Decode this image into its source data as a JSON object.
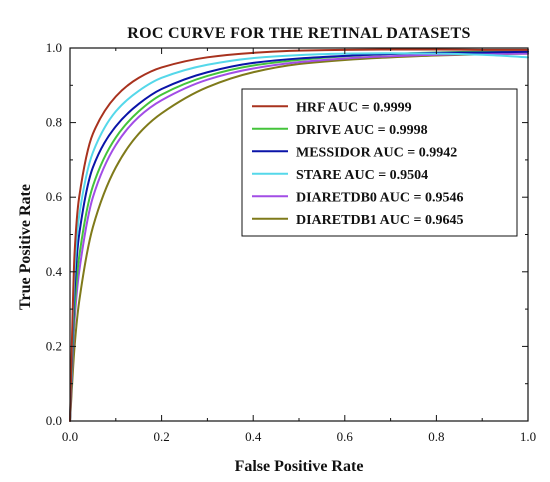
{
  "chart_data": {
    "type": "line",
    "title": "ROC CURVE FOR THE RETINAL DATASETS",
    "xlabel": "False Positive Rate",
    "ylabel": "True Positive Rate",
    "xlim": [
      0.0,
      1.0
    ],
    "ylim": [
      0.0,
      1.0
    ],
    "xticks": [
      "0.0",
      "0.2",
      "0.4",
      "0.6",
      "0.8",
      "1.0"
    ],
    "yticks": [
      "0.0",
      "0.2",
      "0.4",
      "0.6",
      "0.8",
      "1.0"
    ],
    "grid": false,
    "legend_position": "upper-right",
    "x": [
      0.0,
      0.01,
      0.02,
      0.05,
      0.1,
      0.15,
      0.2,
      0.3,
      0.4,
      0.5,
      0.6,
      0.7,
      0.8,
      0.9,
      1.0
    ],
    "series": [
      {
        "name": "HRF AUC = 0.9999",
        "color": "#a8321e",
        "values": [
          0.0,
          0.45,
          0.6,
          0.77,
          0.87,
          0.92,
          0.948,
          0.975,
          0.987,
          0.993,
          0.995,
          0.996,
          0.996,
          0.995,
          0.995
        ]
      },
      {
        "name": "DRIVE AUC = 0.9998",
        "color": "#44c43a",
        "values": [
          0.0,
          0.3,
          0.44,
          0.63,
          0.76,
          0.83,
          0.875,
          0.925,
          0.953,
          0.968,
          0.978,
          0.984,
          0.988,
          0.99,
          0.99
        ]
      },
      {
        "name": "MESSIDOR AUC = 0.9942",
        "color": "#0a14a8",
        "values": [
          0.0,
          0.35,
          0.5,
          0.68,
          0.79,
          0.85,
          0.89,
          0.935,
          0.96,
          0.972,
          0.979,
          0.984,
          0.987,
          0.988,
          0.99
        ]
      },
      {
        "name": "STARE AUC = 0.9504",
        "color": "#55d8ea",
        "values": [
          0.0,
          0.4,
          0.55,
          0.72,
          0.83,
          0.885,
          0.92,
          0.955,
          0.973,
          0.981,
          0.985,
          0.986,
          0.985,
          0.982,
          0.975
        ]
      },
      {
        "name": "DIARETDB0 AUC = 0.9546",
        "color": "#a24de6",
        "values": [
          0.0,
          0.27,
          0.4,
          0.6,
          0.74,
          0.815,
          0.86,
          0.915,
          0.945,
          0.962,
          0.972,
          0.978,
          0.982,
          0.984,
          0.985
        ]
      },
      {
        "name": "DIARETDB1 AUC = 0.9645",
        "color": "#7f7a1a",
        "values": [
          0.0,
          0.2,
          0.32,
          0.52,
          0.68,
          0.77,
          0.825,
          0.895,
          0.935,
          0.957,
          0.968,
          0.975,
          0.98,
          0.983,
          0.985
        ]
      }
    ]
  }
}
